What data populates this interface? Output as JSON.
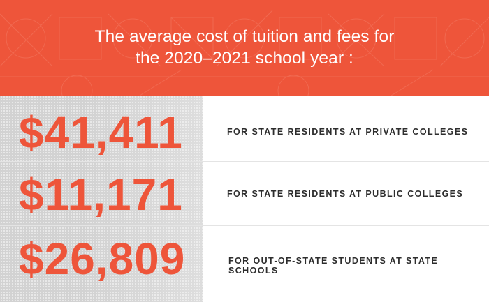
{
  "header": {
    "title_line1": "The average cost of tuition and fees for",
    "title_line2": "the 2020–2021 school year :",
    "background_color": "#ee553a"
  },
  "stats": [
    {
      "amount": "$41,411",
      "description": "FOR STATE RESIDENTS AT PRIVATE COLLEGES"
    },
    {
      "amount": "$11,171",
      "description": "FOR STATE RESIDENTS AT PUBLIC COLLEGES"
    },
    {
      "amount": "$26,809",
      "description": "FOR OUT-OF-STATE STUDENTS AT STATE SCHOOLS"
    }
  ],
  "colors": {
    "accent": "#ee553a",
    "panel": "#d2d2d2",
    "text_dark": "#2d2d2d"
  }
}
